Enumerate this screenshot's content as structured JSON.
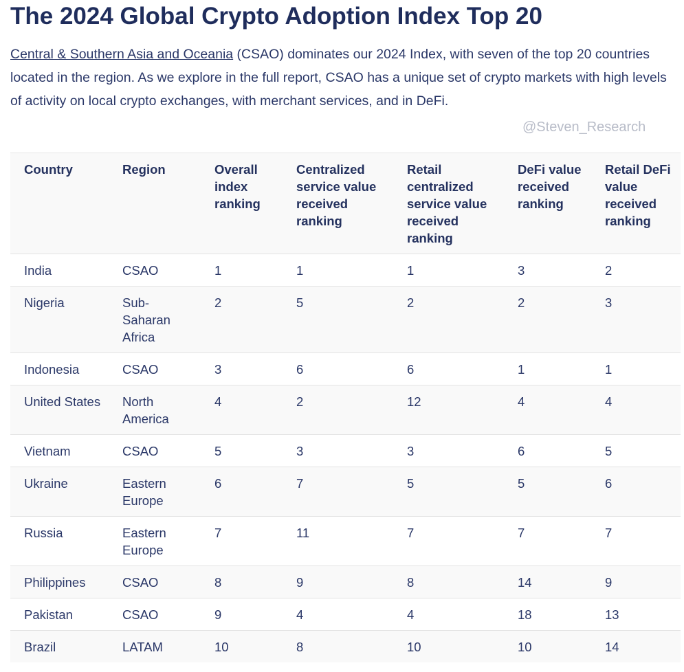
{
  "title": "The 2024 Global Crypto Adoption Index Top 20",
  "intro": {
    "link_text": "Central & Southern Asia and Oceania",
    "text": " (CSAO) dominates our 2024 Index, with seven of the top 20 countries located in the region. As we explore in the full report, CSAO has a unique set of crypto markets with high levels of activity on local crypto exchanges, with merchant services, and in DeFi."
  },
  "table": {
    "headers": [
      "Country",
      "Region",
      "Overall index ranking",
      "Centralized service value received ranking",
      "Retail centralized service value received ranking",
      "DeFi value received ranking",
      "Retail DeFi value received ranking"
    ],
    "rows": [
      [
        "India",
        "CSAO",
        "1",
        "1",
        "1",
        "3",
        "2"
      ],
      [
        "Nigeria",
        "Sub-Saharan Africa",
        "2",
        "5",
        "2",
        "2",
        "3"
      ],
      [
        "Indonesia",
        "CSAO",
        "3",
        "6",
        "6",
        "1",
        "1"
      ],
      [
        "United States",
        "North America",
        "4",
        "2",
        "12",
        "4",
        "4"
      ],
      [
        "Vietnam",
        "CSAO",
        "5",
        "3",
        "3",
        "6",
        "5"
      ],
      [
        "Ukraine",
        "Eastern Europe",
        "6",
        "7",
        "5",
        "5",
        "6"
      ],
      [
        "Russia",
        "Eastern Europe",
        "7",
        "11",
        "7",
        "7",
        "7"
      ],
      [
        "Philippines",
        "CSAO",
        "8",
        "9",
        "8",
        "14",
        "9"
      ],
      [
        "Pakistan",
        "CSAO",
        "9",
        "4",
        "4",
        "18",
        "13"
      ],
      [
        "Brazil",
        "LATAM",
        "10",
        "8",
        "10",
        "10",
        "14"
      ]
    ]
  },
  "watermark": "@Steven_Research"
}
